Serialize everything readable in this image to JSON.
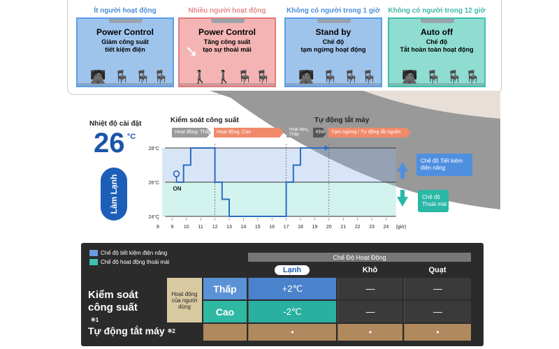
{
  "rooms": [
    {
      "label": "Ít người hoạt động",
      "title": "Power Control",
      "line1": "Giảm công suất",
      "line2": "tiết kiệm điện",
      "label_color": "#4a8fd8",
      "bg": "#9ec4ec",
      "border": "#5b9ee8"
    },
    {
      "label": "Nhiều người hoạt động",
      "title": "Power Control",
      "line1": "Tăng công suất",
      "line2": "tạo sự thoải mái",
      "label_color": "#e88a8a",
      "bg": "#f4b4b4",
      "border": "#e07a7a"
    },
    {
      "label": "Không có người trong 1 giờ",
      "title": "Stand by",
      "line1": "Chế độ",
      "line2": "tạm ngừng hoạt động",
      "label_color": "#4a8fd8",
      "bg": "#9ec4ec",
      "border": "#5b9ee8"
    },
    {
      "label": "Không có người trong 12 giờ",
      "title": "Auto off",
      "line1": "Chế độ",
      "line2": "Tắt hoàn toàn hoạt động",
      "label_color": "#3fb8a8",
      "bg": "#8fdcd0",
      "border": "#3fbfae"
    }
  ],
  "setting": {
    "label": "Nhiệt độ cài đặt",
    "value": "26",
    "unit": "°C"
  },
  "mode_badge": "Làm Lạnh",
  "phases": {
    "left": "Kiểm soát công suất",
    "right": "Tự động tắt máy"
  },
  "bars": [
    {
      "label": "Hoạt động: Thấp",
      "color": "#9a9a9a"
    },
    {
      "label": "Hoạt động: Cao",
      "color": "#f08a6a"
    },
    {
      "label": "Hoạt động Thấp",
      "color": "#9a9a9a"
    },
    {
      "label": "Không",
      "color": "#555555"
    },
    {
      "label": "Tạm ngừng / Tự động tắt nguồn",
      "color": "#f08a6a"
    }
  ],
  "chart_data": {
    "type": "line",
    "title": "",
    "xlabel": "(giờ)",
    "ylabel": "",
    "x_ticks": [
      "8",
      "9",
      "10",
      "11",
      "12",
      "13",
      "14",
      "15",
      "16",
      "17",
      "18",
      "19",
      "20",
      "21",
      "22",
      "23",
      "24"
    ],
    "y_ticks": [
      "24°C",
      "26°C",
      "28°C"
    ],
    "xlim": [
      8,
      24.7
    ],
    "ylim": [
      24,
      28
    ],
    "series": [
      {
        "name": "Nhiệt độ",
        "points": [
          [
            9.3,
            26
          ],
          [
            9.8,
            26
          ],
          [
            9.8,
            27
          ],
          [
            10.3,
            27
          ],
          [
            10.3,
            28
          ],
          [
            12,
            28
          ],
          [
            12,
            26
          ],
          [
            12.5,
            26
          ],
          [
            12.5,
            25
          ],
          [
            13,
            25
          ],
          [
            13,
            24
          ],
          [
            17,
            24
          ],
          [
            17,
            26
          ],
          [
            17.5,
            26
          ],
          [
            17.5,
            27
          ],
          [
            18,
            27
          ],
          [
            18,
            28
          ],
          [
            20,
            28
          ]
        ],
        "color": "#2d6cc0"
      }
    ],
    "annotations": [
      "ON",
      "Chế độ Tiết kiệm điện năng",
      "Chế độ Thoải mái"
    ]
  },
  "callouts": {
    "energy": "Chế độ Tiết kiệm điện năng",
    "comfort": "Chế độ Thoải mái",
    "on": "ON"
  },
  "table": {
    "legend": [
      {
        "label": "Chế độ tiết kiệm điện năng",
        "color": "#6b9be0"
      },
      {
        "label": "Chế độ hoạt động thoải mái",
        "color": "#3fc1b0"
      }
    ],
    "header": "Chế Độ Hoạt Động",
    "columns": [
      "Lạnh",
      "Khô",
      "Quạt"
    ],
    "row_group": "Kiểm soát công suất",
    "row_group_note": "※1",
    "sub_label": "Hoạt động của người dùng",
    "rows": [
      {
        "label": "Thấp",
        "values": [
          "+2℃",
          "—",
          "—"
        ]
      },
      {
        "label": "Cao",
        "values": [
          "-2℃",
          "—",
          "—"
        ]
      }
    ],
    "auto_off": {
      "label": "Tự động tắt máy",
      "note": "※2",
      "values": [
        "•",
        "•",
        "•"
      ]
    }
  }
}
